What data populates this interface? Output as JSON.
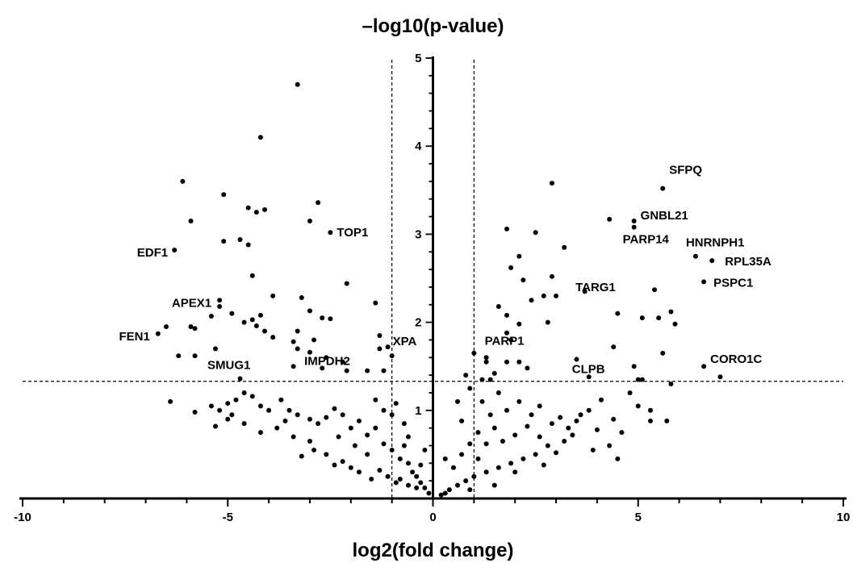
{
  "chart_data": {
    "type": "scatter",
    "title": "–log10(p-value)",
    "xlabel": "log2(fold change)",
    "ylabel": "–log10(p-value)",
    "xlim": [
      -10,
      10
    ],
    "ylim": [
      0,
      5
    ],
    "x_ticks": [
      -10,
      -5,
      0,
      5,
      10
    ],
    "y_ticks": [
      1,
      2,
      3,
      4,
      5
    ],
    "threshold_x": [
      -1,
      1
    ],
    "threshold_y": 1.33,
    "grid": false,
    "labeled_points": [
      {
        "name": "SFPQ",
        "x": 5.6,
        "y": 3.52
      },
      {
        "name": "GNBL21",
        "x": 4.9,
        "y": 3.15
      },
      {
        "name": "PARP14",
        "x": 4.9,
        "y": 3.08
      },
      {
        "name": "HNRNPH1",
        "x": 6.4,
        "y": 2.75
      },
      {
        "name": "RPL35A",
        "x": 6.8,
        "y": 2.7
      },
      {
        "name": "TARG1",
        "x": 5.4,
        "y": 2.37
      },
      {
        "name": "PSPC1",
        "x": 6.6,
        "y": 2.46
      },
      {
        "name": "CORO1C",
        "x": 6.6,
        "y": 1.5
      },
      {
        "name": "CLPB",
        "x": 5.0,
        "y": 1.35
      },
      {
        "name": "PARP1",
        "x": 1.3,
        "y": 1.6
      },
      {
        "name": "TOP1",
        "x": -2.5,
        "y": 3.02
      },
      {
        "name": "EDF1",
        "x": -6.3,
        "y": 2.82
      },
      {
        "name": "APEX1",
        "x": -5.2,
        "y": 2.25
      },
      {
        "name": "FEN1",
        "x": -6.7,
        "y": 1.87
      },
      {
        "name": "SMUG1",
        "x": -5.3,
        "y": 1.7
      },
      {
        "name": "IMPDH2",
        "x": -1.6,
        "y": 1.45
      },
      {
        "name": "XPA",
        "x": -1.1,
        "y": 1.72
      }
    ],
    "points": [
      [
        -3.3,
        4.7
      ],
      [
        -4.2,
        4.1
      ],
      [
        -6.1,
        3.6
      ],
      [
        -5.9,
        3.15
      ],
      [
        -5.1,
        3.45
      ],
      [
        -4.5,
        3.3
      ],
      [
        -4.3,
        3.25
      ],
      [
        -4.1,
        3.28
      ],
      [
        -2.8,
        3.36
      ],
      [
        -3.0,
        3.15
      ],
      [
        -5.1,
        2.92
      ],
      [
        -4.7,
        2.94
      ],
      [
        -4.5,
        2.88
      ],
      [
        -4.4,
        2.53
      ],
      [
        -2.1,
        2.44
      ],
      [
        -3.2,
        2.28
      ],
      [
        -3.9,
        2.3
      ],
      [
        -1.4,
        2.22
      ],
      [
        -5.2,
        2.18
      ],
      [
        -5.4,
        2.07
      ],
      [
        -4.9,
        2.1
      ],
      [
        -4.6,
        2.0
      ],
      [
        -4.2,
        2.08
      ],
      [
        -4.4,
        2.03
      ],
      [
        -3.0,
        2.13
      ],
      [
        -2.7,
        2.05
      ],
      [
        -2.5,
        2.04
      ],
      [
        -6.5,
        1.95
      ],
      [
        -5.9,
        1.95
      ],
      [
        -5.8,
        1.93
      ],
      [
        -4.3,
        1.96
      ],
      [
        -4.1,
        1.9
      ],
      [
        -3.9,
        1.83
      ],
      [
        -3.3,
        1.9
      ],
      [
        -2.9,
        1.8
      ],
      [
        -1.3,
        1.85
      ],
      [
        -6.2,
        1.62
      ],
      [
        -5.8,
        1.62
      ],
      [
        -3.4,
        1.78
      ],
      [
        -3.3,
        1.7
      ],
      [
        -3.0,
        1.66
      ],
      [
        -2.2,
        1.55
      ],
      [
        -1.3,
        1.7
      ],
      [
        -1.0,
        1.62
      ],
      [
        -3.4,
        1.5
      ],
      [
        -2.7,
        1.48
      ],
      [
        -2.1,
        1.45
      ],
      [
        -1.2,
        1.45
      ],
      [
        -2.6,
        1.6
      ],
      [
        -4.7,
        1.36
      ],
      [
        -6.4,
        1.1
      ],
      [
        -5.8,
        0.98
      ],
      [
        -5.4,
        1.05
      ],
      [
        -5.2,
        1.0
      ],
      [
        -5.0,
        1.08
      ],
      [
        -4.8,
        1.12
      ],
      [
        -4.6,
        1.2
      ],
      [
        -4.4,
        1.16
      ],
      [
        -4.2,
        1.05
      ],
      [
        -4.0,
        1.0
      ],
      [
        -3.7,
        1.12
      ],
      [
        -3.5,
        1.0
      ],
      [
        -3.3,
        0.95
      ],
      [
        -3.0,
        0.9
      ],
      [
        -2.8,
        0.85
      ],
      [
        -2.6,
        0.92
      ],
      [
        -2.4,
        1.02
      ],
      [
        -2.2,
        0.95
      ],
      [
        -2.0,
        0.8
      ],
      [
        -1.8,
        0.88
      ],
      [
        -1.6,
        0.72
      ],
      [
        -1.4,
        0.8
      ],
      [
        -1.2,
        0.62
      ],
      [
        -1.0,
        0.55
      ],
      [
        -0.8,
        0.45
      ],
      [
        -0.7,
        0.6
      ],
      [
        -0.6,
        0.4
      ],
      [
        -0.5,
        0.3
      ],
      [
        -0.4,
        0.25
      ],
      [
        -0.3,
        0.18
      ],
      [
        -0.2,
        0.12
      ],
      [
        -0.1,
        0.06
      ],
      [
        -5.0,
        0.9
      ],
      [
        -4.6,
        0.85
      ],
      [
        -4.2,
        0.75
      ],
      [
        -3.8,
        0.8
      ],
      [
        -3.4,
        0.7
      ],
      [
        -3.2,
        0.48
      ],
      [
        -3.0,
        0.65
      ],
      [
        -2.6,
        0.5
      ],
      [
        -2.4,
        0.38
      ],
      [
        -2.2,
        0.42
      ],
      [
        -2.0,
        0.35
      ],
      [
        -1.8,
        0.3
      ],
      [
        -1.6,
        0.5
      ],
      [
        -1.5,
        0.22
      ],
      [
        -1.3,
        0.32
      ],
      [
        -1.1,
        0.25
      ],
      [
        -0.9,
        0.18
      ],
      [
        -0.8,
        0.22
      ],
      [
        -0.6,
        0.15
      ],
      [
        -0.4,
        0.12
      ],
      [
        -1.0,
        0.95
      ],
      [
        -0.9,
        1.08
      ],
      [
        -0.7,
        0.85
      ],
      [
        -0.6,
        0.7
      ],
      [
        -1.2,
        1.0
      ],
      [
        -1.4,
        1.12
      ],
      [
        -2.9,
        0.55
      ],
      [
        -3.6,
        0.88
      ],
      [
        -4.9,
        0.95
      ],
      [
        -5.3,
        0.82
      ],
      [
        -1.9,
        0.6
      ],
      [
        -2.3,
        0.7
      ],
      [
        -0.3,
        0.38
      ],
      [
        -0.2,
        0.55
      ],
      [
        2.9,
        3.58
      ],
      [
        4.3,
        3.17
      ],
      [
        2.5,
        3.02
      ],
      [
        1.8,
        3.06
      ],
      [
        2.1,
        2.75
      ],
      [
        3.2,
        2.85
      ],
      [
        1.9,
        2.62
      ],
      [
        2.9,
        2.52
      ],
      [
        2.2,
        2.48
      ],
      [
        3.7,
        2.35
      ],
      [
        2.7,
        2.3
      ],
      [
        3.0,
        2.3
      ],
      [
        2.4,
        2.25
      ],
      [
        1.6,
        2.18
      ],
      [
        4.5,
        2.1
      ],
      [
        5.1,
        2.05
      ],
      [
        5.5,
        2.05
      ],
      [
        5.8,
        2.12
      ],
      [
        5.9,
        1.98
      ],
      [
        2.8,
        2.0
      ],
      [
        1.8,
        2.08
      ],
      [
        2.1,
        1.98
      ],
      [
        1.8,
        1.88
      ],
      [
        1.9,
        1.8
      ],
      [
        1.0,
        1.65
      ],
      [
        1.3,
        1.55
      ],
      [
        1.5,
        1.42
      ],
      [
        1.8,
        1.55
      ],
      [
        2.1,
        1.55
      ],
      [
        2.3,
        1.48
      ],
      [
        3.5,
        1.58
      ],
      [
        4.4,
        1.72
      ],
      [
        4.9,
        1.5
      ],
      [
        5.1,
        1.35
      ],
      [
        5.6,
        1.65
      ],
      [
        5.8,
        1.3
      ],
      [
        7.0,
        1.38
      ],
      [
        3.8,
        1.38
      ],
      [
        0.8,
        1.4
      ],
      [
        1.4,
        1.35
      ],
      [
        0.6,
        1.1
      ],
      [
        0.9,
        1.25
      ],
      [
        1.2,
        1.1
      ],
      [
        1.6,
        1.2
      ],
      [
        1.8,
        1.0
      ],
      [
        2.1,
        1.1
      ],
      [
        2.4,
        0.95
      ],
      [
        2.6,
        1.05
      ],
      [
        2.9,
        0.85
      ],
      [
        3.1,
        0.92
      ],
      [
        3.3,
        0.8
      ],
      [
        3.5,
        0.88
      ],
      [
        3.8,
        1.0
      ],
      [
        4.1,
        1.12
      ],
      [
        4.4,
        0.9
      ],
      [
        4.6,
        0.75
      ],
      [
        5.0,
        1.05
      ],
      [
        5.3,
        0.88
      ],
      [
        5.7,
        0.88
      ],
      [
        4.3,
        0.6
      ],
      [
        4.5,
        0.45
      ],
      [
        3.9,
        0.55
      ],
      [
        3.4,
        0.72
      ],
      [
        2.8,
        0.6
      ],
      [
        2.5,
        0.5
      ],
      [
        2.2,
        0.45
      ],
      [
        1.9,
        0.4
      ],
      [
        1.6,
        0.35
      ],
      [
        1.3,
        0.3
      ],
      [
        1.0,
        0.25
      ],
      [
        0.8,
        0.2
      ],
      [
        0.6,
        0.15
      ],
      [
        0.4,
        0.1
      ],
      [
        0.3,
        0.06
      ],
      [
        0.2,
        0.04
      ],
      [
        0.5,
        0.35
      ],
      [
        0.7,
        0.5
      ],
      [
        0.9,
        0.62
      ],
      [
        1.1,
        0.75
      ],
      [
        1.3,
        0.62
      ],
      [
        1.5,
        0.8
      ],
      [
        1.7,
        0.65
      ],
      [
        2.0,
        0.72
      ],
      [
        2.3,
        0.82
      ],
      [
        2.6,
        0.7
      ],
      [
        3.2,
        0.65
      ],
      [
        3.6,
        0.95
      ],
      [
        1.4,
        0.95
      ],
      [
        1.1,
        0.45
      ],
      [
        0.7,
        0.88
      ],
      [
        2.0,
        0.3
      ],
      [
        2.7,
        0.38
      ],
      [
        1.5,
        0.15
      ],
      [
        0.9,
        0.1
      ],
      [
        4.0,
        0.78
      ],
      [
        3.0,
        0.52
      ],
      [
        4.8,
        1.2
      ],
      [
        5.3,
        1.0
      ],
      [
        0.3,
        0.45
      ],
      [
        1.2,
        1.35
      ]
    ]
  }
}
